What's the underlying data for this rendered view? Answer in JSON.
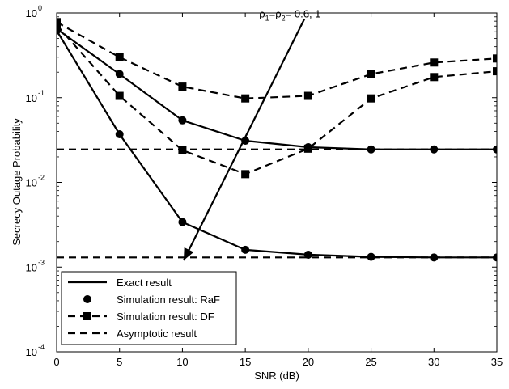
{
  "chart_data": {
    "type": "line",
    "title": "",
    "xlabel": "SNR (dB)",
    "ylabel": "Secrecy Outage Probability",
    "xlim": [
      0,
      35
    ],
    "ylim": [
      0.0001,
      1
    ],
    "yscale": "log",
    "grid": false,
    "legend_position": "bottom-left",
    "x_ticks": [
      {
        "value": 0,
        "label": "0"
      },
      {
        "value": 5,
        "label": "5"
      },
      {
        "value": 10,
        "label": "10"
      },
      {
        "value": 15,
        "label": "15"
      },
      {
        "value": 20,
        "label": "20"
      },
      {
        "value": 25,
        "label": "25"
      },
      {
        "value": 30,
        "label": "30"
      },
      {
        "value": 35,
        "label": "35"
      }
    ],
    "y_ticks": [
      {
        "value": 0.0001,
        "base": "10",
        "exp": "-4"
      },
      {
        "value": 0.001,
        "base": "10",
        "exp": "-3"
      },
      {
        "value": 0.01,
        "base": "10",
        "exp": "-2"
      },
      {
        "value": 0.1,
        "base": "10",
        "exp": "-1"
      },
      {
        "value": 1,
        "base": "10",
        "exp": "0"
      }
    ],
    "annotation": {
      "rho": "ρ",
      "sub1": "1",
      "eq": "=",
      "sub2": "2",
      "values": "= 0.6, 1",
      "arrow_from": {
        "x": 19.7,
        "y": 0.85
      },
      "arrow_to": {
        "x": 10.1,
        "y": 0.0012
      },
      "label_at": {
        "x": 16.1,
        "y": 0.85
      }
    },
    "legend": [
      {
        "label": "Exact result",
        "style": "solid",
        "marker": "none"
      },
      {
        "label": "Simulation result: RaF",
        "style": "none",
        "marker": "circle"
      },
      {
        "label": "Simulation result: DF",
        "style": "dashed",
        "marker": "square"
      },
      {
        "label": "Asymptotic result",
        "style": "dashed",
        "marker": "none"
      }
    ],
    "series": [
      {
        "style": "solid",
        "marker": "circle",
        "x": [
          0,
          5,
          10,
          15,
          20,
          25,
          30,
          35
        ],
        "y": [
          0.65,
          0.19,
          0.054,
          0.031,
          0.026,
          0.0245,
          0.0245,
          0.0245
        ]
      },
      {
        "style": "solid",
        "marker": "circle",
        "x": [
          0,
          5,
          10,
          15,
          20,
          25,
          30,
          35
        ],
        "y": [
          0.62,
          0.037,
          0.0034,
          0.0016,
          0.0014,
          0.00132,
          0.0013,
          0.0013
        ]
      },
      {
        "style": "dashed",
        "marker": "square",
        "x": [
          0,
          5,
          10,
          15,
          20,
          25,
          30,
          35
        ],
        "y": [
          0.78,
          0.3,
          0.135,
          0.098,
          0.105,
          0.19,
          0.26,
          0.29
        ]
      },
      {
        "style": "dashed",
        "marker": "square",
        "x": [
          0,
          5,
          10,
          15,
          20,
          25,
          30,
          35
        ],
        "y": [
          0.72,
          0.105,
          0.024,
          0.0125,
          0.025,
          0.098,
          0.175,
          0.205
        ]
      },
      {
        "style": "dashed",
        "marker": "none",
        "x": [
          0,
          35
        ],
        "y": [
          0.0245,
          0.0245
        ]
      },
      {
        "style": "dashed",
        "marker": "none",
        "x": [
          0,
          35
        ],
        "y": [
          0.0013,
          0.0013
        ]
      }
    ]
  }
}
